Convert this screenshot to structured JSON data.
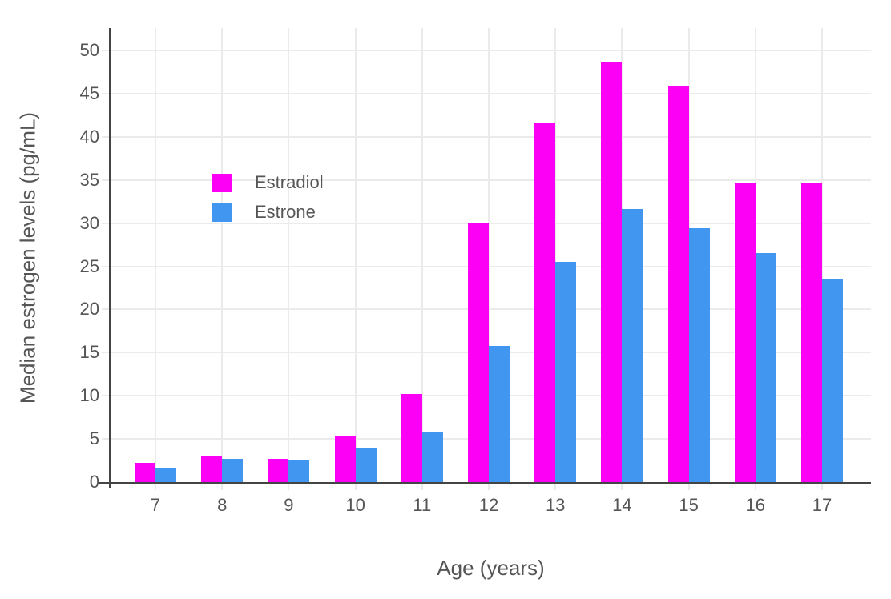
{
  "chart_data": {
    "type": "bar",
    "title": "",
    "xlabel": "Age (years)",
    "ylabel": "Median estrogen levels (pg/mL)",
    "categories": [
      7,
      8,
      9,
      10,
      11,
      12,
      13,
      14,
      15,
      16,
      17
    ],
    "series": [
      {
        "name": "Estradiol",
        "color": "#FB00F5",
        "values": [
          2.2,
          3.0,
          2.7,
          5.4,
          10.2,
          30.1,
          41.6,
          48.6,
          45.9,
          34.6,
          34.7
        ]
      },
      {
        "name": "Estrone",
        "color": "#4196F0",
        "values": [
          1.7,
          2.7,
          2.6,
          4.0,
          5.8,
          15.8,
          25.5,
          31.6,
          29.4,
          26.5,
          23.6
        ]
      }
    ],
    "y_ticks": [
      0,
      5,
      10,
      15,
      20,
      25,
      30,
      35,
      40,
      45,
      50
    ],
    "ylim": [
      0,
      52.6
    ],
    "grid": true,
    "legend_position": "inside-top-left"
  },
  "colors": {
    "estradiol": "#FB00F5",
    "estrone": "#4196F0",
    "axis": "#444444",
    "grid": "#EBEBEB",
    "text": "#555555",
    "background": "#FFFFFF"
  }
}
